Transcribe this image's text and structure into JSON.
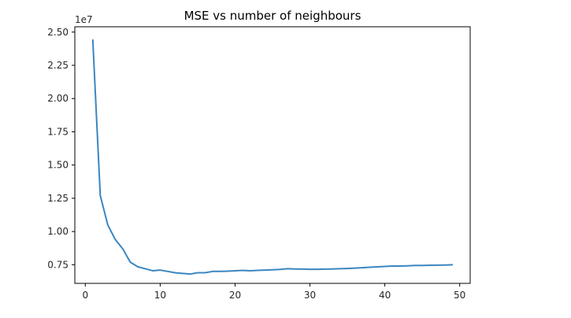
{
  "chart_data": {
    "type": "line",
    "title": "MSE vs number of neighbours",
    "xlabel": "",
    "ylabel": "",
    "y_scale_note": "1e7",
    "xlim": [
      -1.4,
      51.4
    ],
    "ylim": [
      0.61,
      2.54
    ],
    "x_ticks": [
      0,
      10,
      20,
      30,
      40,
      50
    ],
    "x_tick_labels": [
      "0",
      "10",
      "20",
      "30",
      "40",
      "50"
    ],
    "y_ticks": [
      0.75,
      1.0,
      1.25,
      1.5,
      1.75,
      2.0,
      2.25,
      2.5
    ],
    "y_tick_labels": [
      "0.75",
      "1.00",
      "1.25",
      "1.50",
      "1.75",
      "2.00",
      "2.25",
      "2.50"
    ],
    "grid": false,
    "legend": "none",
    "series_color": "#3c86c0",
    "series": [
      {
        "x": [
          1,
          2,
          3,
          4,
          5,
          6,
          7,
          8,
          9,
          10,
          11,
          12,
          13,
          14,
          15,
          16,
          17,
          18,
          19,
          20,
          21,
          22,
          23,
          24,
          25,
          26,
          27,
          28,
          29,
          30,
          31,
          32,
          33,
          34,
          35,
          36,
          37,
          38,
          39,
          40,
          41,
          42,
          43,
          44,
          45,
          46,
          47,
          48,
          49
        ],
        "values": [
          2.44,
          1.27,
          1.05,
          0.94,
          0.87,
          0.77,
          0.735,
          0.72,
          0.705,
          0.71,
          0.7,
          0.69,
          0.685,
          0.68,
          0.69,
          0.69,
          0.7,
          0.7,
          0.702,
          0.705,
          0.708,
          0.705,
          0.708,
          0.71,
          0.712,
          0.715,
          0.72,
          0.718,
          0.717,
          0.716,
          0.716,
          0.717,
          0.718,
          0.72,
          0.722,
          0.725,
          0.728,
          0.731,
          0.734,
          0.737,
          0.74,
          0.74,
          0.742,
          0.745,
          0.745,
          0.746,
          0.747,
          0.748,
          0.75
        ]
      }
    ]
  }
}
